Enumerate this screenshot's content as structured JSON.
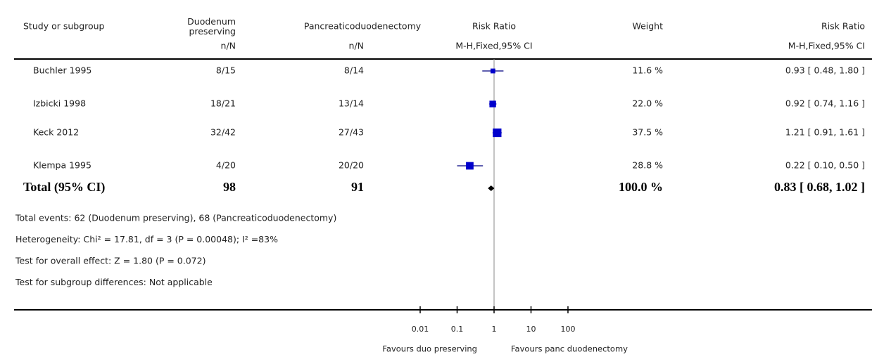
{
  "chart_data": {
    "type": "forest",
    "columns": [
      "Study or subgroup",
      "Duodenum\npreserving",
      "Pancreaticoduodenectomy",
      "Risk Ratio",
      "Weight",
      "Risk Ratio"
    ],
    "subheaders": [
      "n/N",
      "n/N",
      "M-H,Fixed,95% CI",
      "M-H,Fixed,95% CI"
    ],
    "studies": [
      {
        "name": "Buchler 1995",
        "exp": "8/15",
        "ctrl": "8/14",
        "rr": 0.93,
        "lo": 0.48,
        "hi": 1.8,
        "weight": 11.6,
        "weight_label": "11.6 %",
        "ci_label": "0.93 [ 0.48, 1.80 ]"
      },
      {
        "name": "Izbicki 1998",
        "exp": "18/21",
        "ctrl": "13/14",
        "rr": 0.92,
        "lo": 0.74,
        "hi": 1.16,
        "weight": 22.0,
        "weight_label": "22.0 %",
        "ci_label": "0.92 [ 0.74, 1.16 ]"
      },
      {
        "name": "Keck 2012",
        "exp": "32/42",
        "ctrl": "27/43",
        "rr": 1.21,
        "lo": 0.91,
        "hi": 1.61,
        "weight": 37.5,
        "weight_label": "37.5 %",
        "ci_label": "1.21 [ 0.91, 1.61 ]"
      },
      {
        "name": "Klempa 1995",
        "exp": "4/20",
        "ctrl": "20/20",
        "rr": 0.22,
        "lo": 0.1,
        "hi": 0.5,
        "weight": 28.8,
        "weight_label": "28.8 %",
        "ci_label": "0.22 [ 0.10, 0.50 ]"
      }
    ],
    "total": {
      "name": "Total (95% CI)",
      "exp": "98",
      "ctrl": "91",
      "rr": 0.83,
      "lo": 0.68,
      "hi": 1.02,
      "weight": 100.0,
      "weight_label": "100.0 %",
      "ci_label": "0.83 [ 0.68, 1.02 ]"
    },
    "notes": [
      "Total events: 62 (Duodenum preserving), 68 (Pancreaticoduodenectomy)",
      "Heterogeneity: Chi² = 17.81, df = 3 (P = 0.00048); I² =83%",
      "Test for overall effect: Z = 1.80 (P = 0.072)",
      "Test for subgroup differences: Not applicable"
    ],
    "log_scale": true,
    "xlim": [
      0.01,
      100
    ],
    "xticks": [
      0.01,
      0.1,
      1,
      10,
      100
    ],
    "xlabel_left": "Favours duo preserving",
    "xlabel_right": "Favours panc duodenectomy",
    "square_color": "#0000cc",
    "line_color": "#000080"
  }
}
